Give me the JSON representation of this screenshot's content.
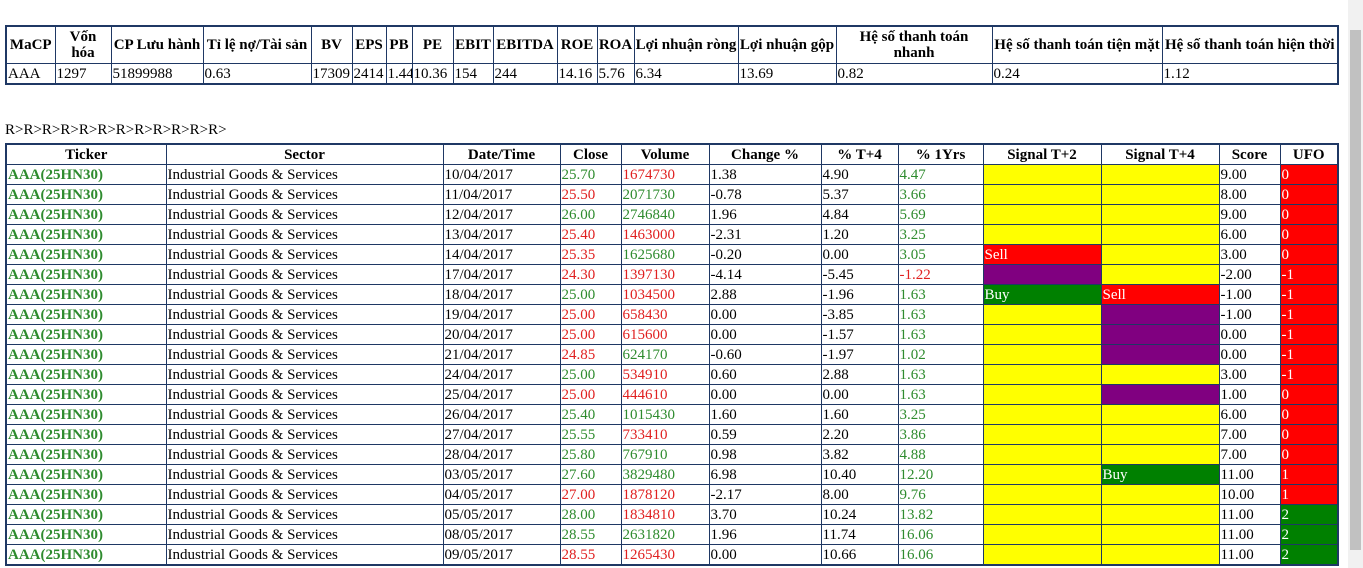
{
  "summary": {
    "headers": [
      "MaCP",
      "Vốn hóa",
      "CP Lưu hành",
      "Tỉ lệ nợ/Tài sản",
      "BV",
      "EPS",
      "PB",
      "PE",
      "EBIT",
      "EBITDA",
      "ROE",
      "ROA",
      "Lợi nhuận ròng",
      "Lợi nhuận gộp",
      "Hệ số thanh toán nhanh",
      "Hệ số thanh toán tiện mặt",
      "Hệ số thanh toán hiện thời"
    ],
    "row": [
      "AAA",
      "1297",
      "51899988",
      "0.63",
      "17309",
      "2414",
      "1.44",
      "10.36",
      "154",
      "244",
      "14.16",
      "5.76",
      "6.34",
      "13.69",
      "0.82",
      "0.24",
      "1.12"
    ]
  },
  "breadcrumb": "R>R>R>R>R>R>R>R>R>R>R>R>",
  "table": {
    "headers": [
      "Ticker",
      "Sector",
      "Date/Time",
      "Close",
      "Volume",
      "Change %",
      "% T+4",
      "% 1Yrs",
      "Signal T+2",
      "Signal T+4",
      "Score",
      "UFO"
    ],
    "rows": [
      {
        "cells": [
          "AAA(25HN30)",
          "Industrial Goods & Services",
          "10/04/2017",
          "25.70",
          "1674730",
          "1.38",
          "4.90",
          "4.47"
        ],
        "close_color": "#2e8b2e",
        "volume_color": "#e02020",
        "signal_t2": {
          "color": "#ffff00"
        },
        "signal_t4": {
          "color": "#ffff00"
        },
        "score": "9.00",
        "ufo": "0",
        "ufo_color": "#ff0000"
      },
      {
        "cells": [
          "AAA(25HN30)",
          "Industrial Goods & Services",
          "11/04/2017",
          "25.50",
          "2071730",
          "-0.78",
          "5.37",
          "3.66"
        ],
        "close_color": "#e02020",
        "volume_color": "#2e8b2e",
        "signal_t2": {
          "color": "#ffff00"
        },
        "signal_t4": {
          "color": "#ffff00"
        },
        "score": "8.00",
        "ufo": "0",
        "ufo_color": "#ff0000"
      },
      {
        "cells": [
          "AAA(25HN30)",
          "Industrial Goods & Services",
          "12/04/2017",
          "26.00",
          "2746840",
          "1.96",
          "4.84",
          "5.69"
        ],
        "close_color": "#2e8b2e",
        "volume_color": "#2e8b2e",
        "signal_t2": {
          "color": "#ffff00"
        },
        "signal_t4": {
          "color": "#ffff00"
        },
        "score": "9.00",
        "ufo": "0",
        "ufo_color": "#ff0000"
      },
      {
        "cells": [
          "AAA(25HN30)",
          "Industrial Goods & Services",
          "13/04/2017",
          "25.40",
          "1463000",
          "-2.31",
          "1.20",
          "3.25"
        ],
        "close_color": "#e02020",
        "volume_color": "#e02020",
        "signal_t2": {
          "color": "#ffff00"
        },
        "signal_t4": {
          "color": "#ffff00"
        },
        "score": "6.00",
        "ufo": "0",
        "ufo_color": "#ff0000"
      },
      {
        "cells": [
          "AAA(25HN30)",
          "Industrial Goods & Services",
          "14/04/2017",
          "25.35",
          "1625680",
          "-0.20",
          "0.00",
          "3.05"
        ],
        "close_color": "#e02020",
        "volume_color": "#2e8b2e",
        "signal_t2": {
          "label": "Sell",
          "color": "#ff0000"
        },
        "signal_t4": {
          "color": "#ffff00"
        },
        "score": "3.00",
        "ufo": "0",
        "ufo_color": "#ff0000"
      },
      {
        "cells": [
          "AAA(25HN30)",
          "Industrial Goods & Services",
          "17/04/2017",
          "24.30",
          "1397130",
          "-4.14",
          "-5.45",
          "-1.22"
        ],
        "close_color": "#e02020",
        "volume_color": "#e02020",
        "signal_t2": {
          "color": "#800080"
        },
        "signal_t4": {
          "color": "#ffff00"
        },
        "score": "-2.00",
        "ufo": "-1",
        "ufo_color": "#ff0000"
      },
      {
        "cells": [
          "AAA(25HN30)",
          "Industrial Goods & Services",
          "18/04/2017",
          "25.00",
          "1034500",
          "2.88",
          "-1.96",
          "1.63"
        ],
        "close_color": "#2e8b2e",
        "volume_color": "#e02020",
        "signal_t2": {
          "label": "Buy",
          "color": "#008000"
        },
        "signal_t4": {
          "label": "Sell",
          "color": "#ff0000"
        },
        "score": "-1.00",
        "ufo": "-1",
        "ufo_color": "#ff0000"
      },
      {
        "cells": [
          "AAA(25HN30)",
          "Industrial Goods & Services",
          "19/04/2017",
          "25.00",
          "658430",
          "0.00",
          "-3.85",
          "1.63"
        ],
        "close_color": "#e02020",
        "volume_color": "#e02020",
        "signal_t2": {
          "color": "#ffff00"
        },
        "signal_t4": {
          "color": "#800080"
        },
        "score": "-1.00",
        "ufo": "-1",
        "ufo_color": "#ff0000"
      },
      {
        "cells": [
          "AAA(25HN30)",
          "Industrial Goods & Services",
          "20/04/2017",
          "25.00",
          "615600",
          "0.00",
          "-1.57",
          "1.63"
        ],
        "close_color": "#e02020",
        "volume_color": "#e02020",
        "signal_t2": {
          "color": "#ffff00"
        },
        "signal_t4": {
          "color": "#800080"
        },
        "score": "0.00",
        "ufo": "-1",
        "ufo_color": "#ff0000"
      },
      {
        "cells": [
          "AAA(25HN30)",
          "Industrial Goods & Services",
          "21/04/2017",
          "24.85",
          "624170",
          "-0.60",
          "-1.97",
          "1.02"
        ],
        "close_color": "#e02020",
        "volume_color": "#2e8b2e",
        "signal_t2": {
          "color": "#ffff00"
        },
        "signal_t4": {
          "color": "#800080"
        },
        "score": "0.00",
        "ufo": "-1",
        "ufo_color": "#ff0000"
      },
      {
        "cells": [
          "AAA(25HN30)",
          "Industrial Goods & Services",
          "24/04/2017",
          "25.00",
          "534910",
          "0.60",
          "2.88",
          "1.63"
        ],
        "close_color": "#2e8b2e",
        "volume_color": "#e02020",
        "signal_t2": {
          "color": "#ffff00"
        },
        "signal_t4": {
          "color": "#ffff00"
        },
        "score": "3.00",
        "ufo": "-1",
        "ufo_color": "#ff0000"
      },
      {
        "cells": [
          "AAA(25HN30)",
          "Industrial Goods & Services",
          "25/04/2017",
          "25.00",
          "444610",
          "0.00",
          "0.00",
          "1.63"
        ],
        "close_color": "#e02020",
        "volume_color": "#e02020",
        "signal_t2": {
          "color": "#ffff00"
        },
        "signal_t4": {
          "color": "#800080"
        },
        "score": "1.00",
        "ufo": "0",
        "ufo_color": "#ff0000"
      },
      {
        "cells": [
          "AAA(25HN30)",
          "Industrial Goods & Services",
          "26/04/2017",
          "25.40",
          "1015430",
          "1.60",
          "1.60",
          "3.25"
        ],
        "close_color": "#2e8b2e",
        "volume_color": "#2e8b2e",
        "signal_t2": {
          "color": "#ffff00"
        },
        "signal_t4": {
          "color": "#ffff00"
        },
        "score": "6.00",
        "ufo": "0",
        "ufo_color": "#ff0000"
      },
      {
        "cells": [
          "AAA(25HN30)",
          "Industrial Goods & Services",
          "27/04/2017",
          "25.55",
          "733410",
          "0.59",
          "2.20",
          "3.86"
        ],
        "close_color": "#2e8b2e",
        "volume_color": "#e02020",
        "signal_t2": {
          "color": "#ffff00"
        },
        "signal_t4": {
          "color": "#ffff00"
        },
        "score": "7.00",
        "ufo": "0",
        "ufo_color": "#ff0000"
      },
      {
        "cells": [
          "AAA(25HN30)",
          "Industrial Goods & Services",
          "28/04/2017",
          "25.80",
          "767910",
          "0.98",
          "3.82",
          "4.88"
        ],
        "close_color": "#2e8b2e",
        "volume_color": "#2e8b2e",
        "signal_t2": {
          "color": "#ffff00"
        },
        "signal_t4": {
          "color": "#ffff00"
        },
        "score": "7.00",
        "ufo": "0",
        "ufo_color": "#ff0000"
      },
      {
        "cells": [
          "AAA(25HN30)",
          "Industrial Goods & Services",
          "03/05/2017",
          "27.60",
          "3829480",
          "6.98",
          "10.40",
          "12.20"
        ],
        "close_color": "#2e8b2e",
        "volume_color": "#2e8b2e",
        "signal_t2": {
          "color": "#ffff00"
        },
        "signal_t4": {
          "label": "Buy",
          "color": "#008000"
        },
        "score": "11.00",
        "ufo": "1",
        "ufo_color": "#ff0000"
      },
      {
        "cells": [
          "AAA(25HN30)",
          "Industrial Goods & Services",
          "04/05/2017",
          "27.00",
          "1878120",
          "-2.17",
          "8.00",
          "9.76"
        ],
        "close_color": "#e02020",
        "volume_color": "#e02020",
        "signal_t2": {
          "color": "#ffff00"
        },
        "signal_t4": {
          "color": "#ffff00"
        },
        "score": "10.00",
        "ufo": "1",
        "ufo_color": "#ff0000"
      },
      {
        "cells": [
          "AAA(25HN30)",
          "Industrial Goods & Services",
          "05/05/2017",
          "28.00",
          "1834810",
          "3.70",
          "10.24",
          "13.82"
        ],
        "close_color": "#2e8b2e",
        "volume_color": "#e02020",
        "signal_t2": {
          "color": "#ffff00"
        },
        "signal_t4": {
          "color": "#ffff00"
        },
        "score": "11.00",
        "ufo": "2",
        "ufo_color": "#008000"
      },
      {
        "cells": [
          "AAA(25HN30)",
          "Industrial Goods & Services",
          "08/05/2017",
          "28.55",
          "2631820",
          "1.96",
          "11.74",
          "16.06"
        ],
        "close_color": "#2e8b2e",
        "volume_color": "#2e8b2e",
        "signal_t2": {
          "color": "#ffff00"
        },
        "signal_t4": {
          "color": "#ffff00"
        },
        "score": "11.00",
        "ufo": "2",
        "ufo_color": "#008000"
      },
      {
        "cells": [
          "AAA(25HN30)",
          "Industrial Goods & Services",
          "09/05/2017",
          "28.55",
          "1265430",
          "0.00",
          "10.66",
          "16.06"
        ],
        "close_color": "#e02020",
        "volume_color": "#e02020",
        "signal_t2": {
          "color": "#ffff00"
        },
        "signal_t4": {
          "color": "#ffff00"
        },
        "score": "11.00",
        "ufo": "2",
        "ufo_color": "#008000"
      }
    ]
  }
}
